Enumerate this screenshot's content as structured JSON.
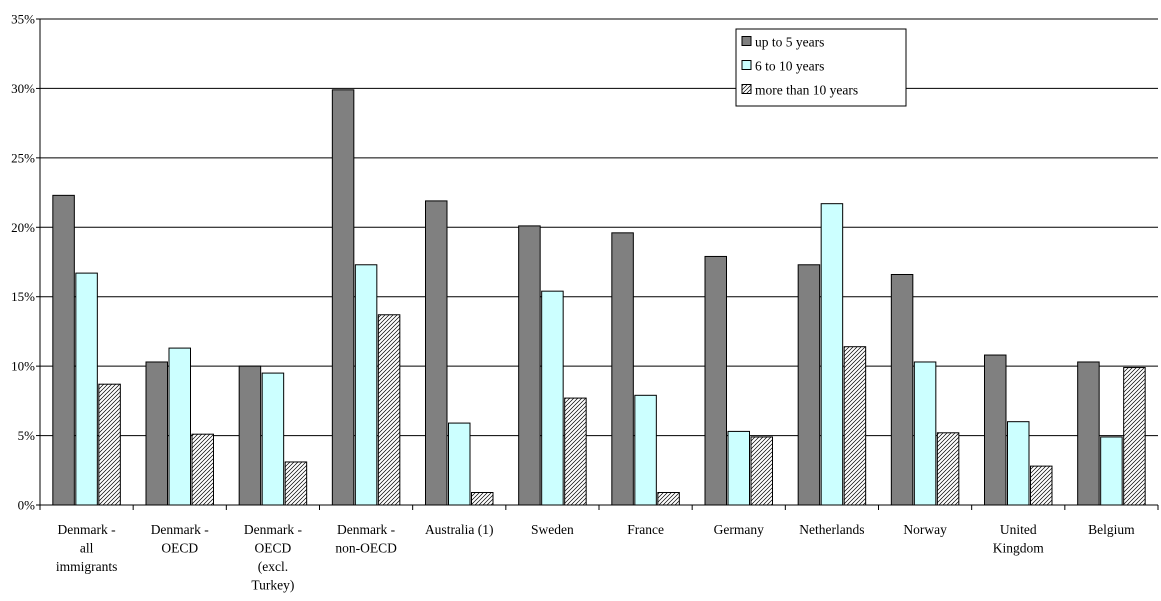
{
  "chart_data": {
    "type": "bar",
    "title": "",
    "xlabel": "",
    "ylabel": "",
    "ylim": [
      0,
      35
    ],
    "y_ticks": [
      "0%",
      "5%",
      "10%",
      "15%",
      "20%",
      "25%",
      "30%",
      "35%"
    ],
    "y_tick_values": [
      0,
      5,
      10,
      15,
      20,
      25,
      30,
      35
    ],
    "grid": true,
    "legend_position": "top-right",
    "categories": [
      "Denmark - all immigrants",
      "Denmark - OECD",
      "Denmark - OECD (excl. Turkey)",
      "Denmark - non-OECD",
      "Australia (1)",
      "Sweden",
      "France",
      "Germany",
      "Netherlands",
      "Norway",
      "United Kingdom",
      "Belgium"
    ],
    "category_label_lines": [
      [
        "Denmark -",
        "all",
        "immigrants"
      ],
      [
        "Denmark -",
        "OECD"
      ],
      [
        "Denmark -",
        "OECD",
        "(excl.",
        "Turkey)"
      ],
      [
        "Denmark -",
        "non-OECD"
      ],
      [
        "Australia (1)"
      ],
      [
        "Sweden"
      ],
      [
        "France"
      ],
      [
        "Germany"
      ],
      [
        "Netherlands"
      ],
      [
        "Norway"
      ],
      [
        "United",
        "Kingdom"
      ],
      [
        "Belgium"
      ]
    ],
    "series": [
      {
        "name": "up to 5 years",
        "color": "#808080",
        "pattern": "solid",
        "values": [
          22.3,
          10.3,
          10.0,
          29.9,
          21.9,
          20.1,
          19.6,
          17.9,
          17.3,
          16.6,
          10.8,
          10.3
        ]
      },
      {
        "name": "6 to 10 years",
        "color": "#ccffff",
        "pattern": "solid",
        "values": [
          16.7,
          11.3,
          9.5,
          17.3,
          5.9,
          15.4,
          7.9,
          5.3,
          21.7,
          10.3,
          6.0,
          4.9
        ]
      },
      {
        "name": "more than 10 years",
        "color": "#c0c0c0",
        "pattern": "hatch",
        "values": [
          8.7,
          5.1,
          3.1,
          13.7,
          0.9,
          7.7,
          0.9,
          4.9,
          11.4,
          5.2,
          2.8,
          9.9
        ]
      }
    ]
  }
}
